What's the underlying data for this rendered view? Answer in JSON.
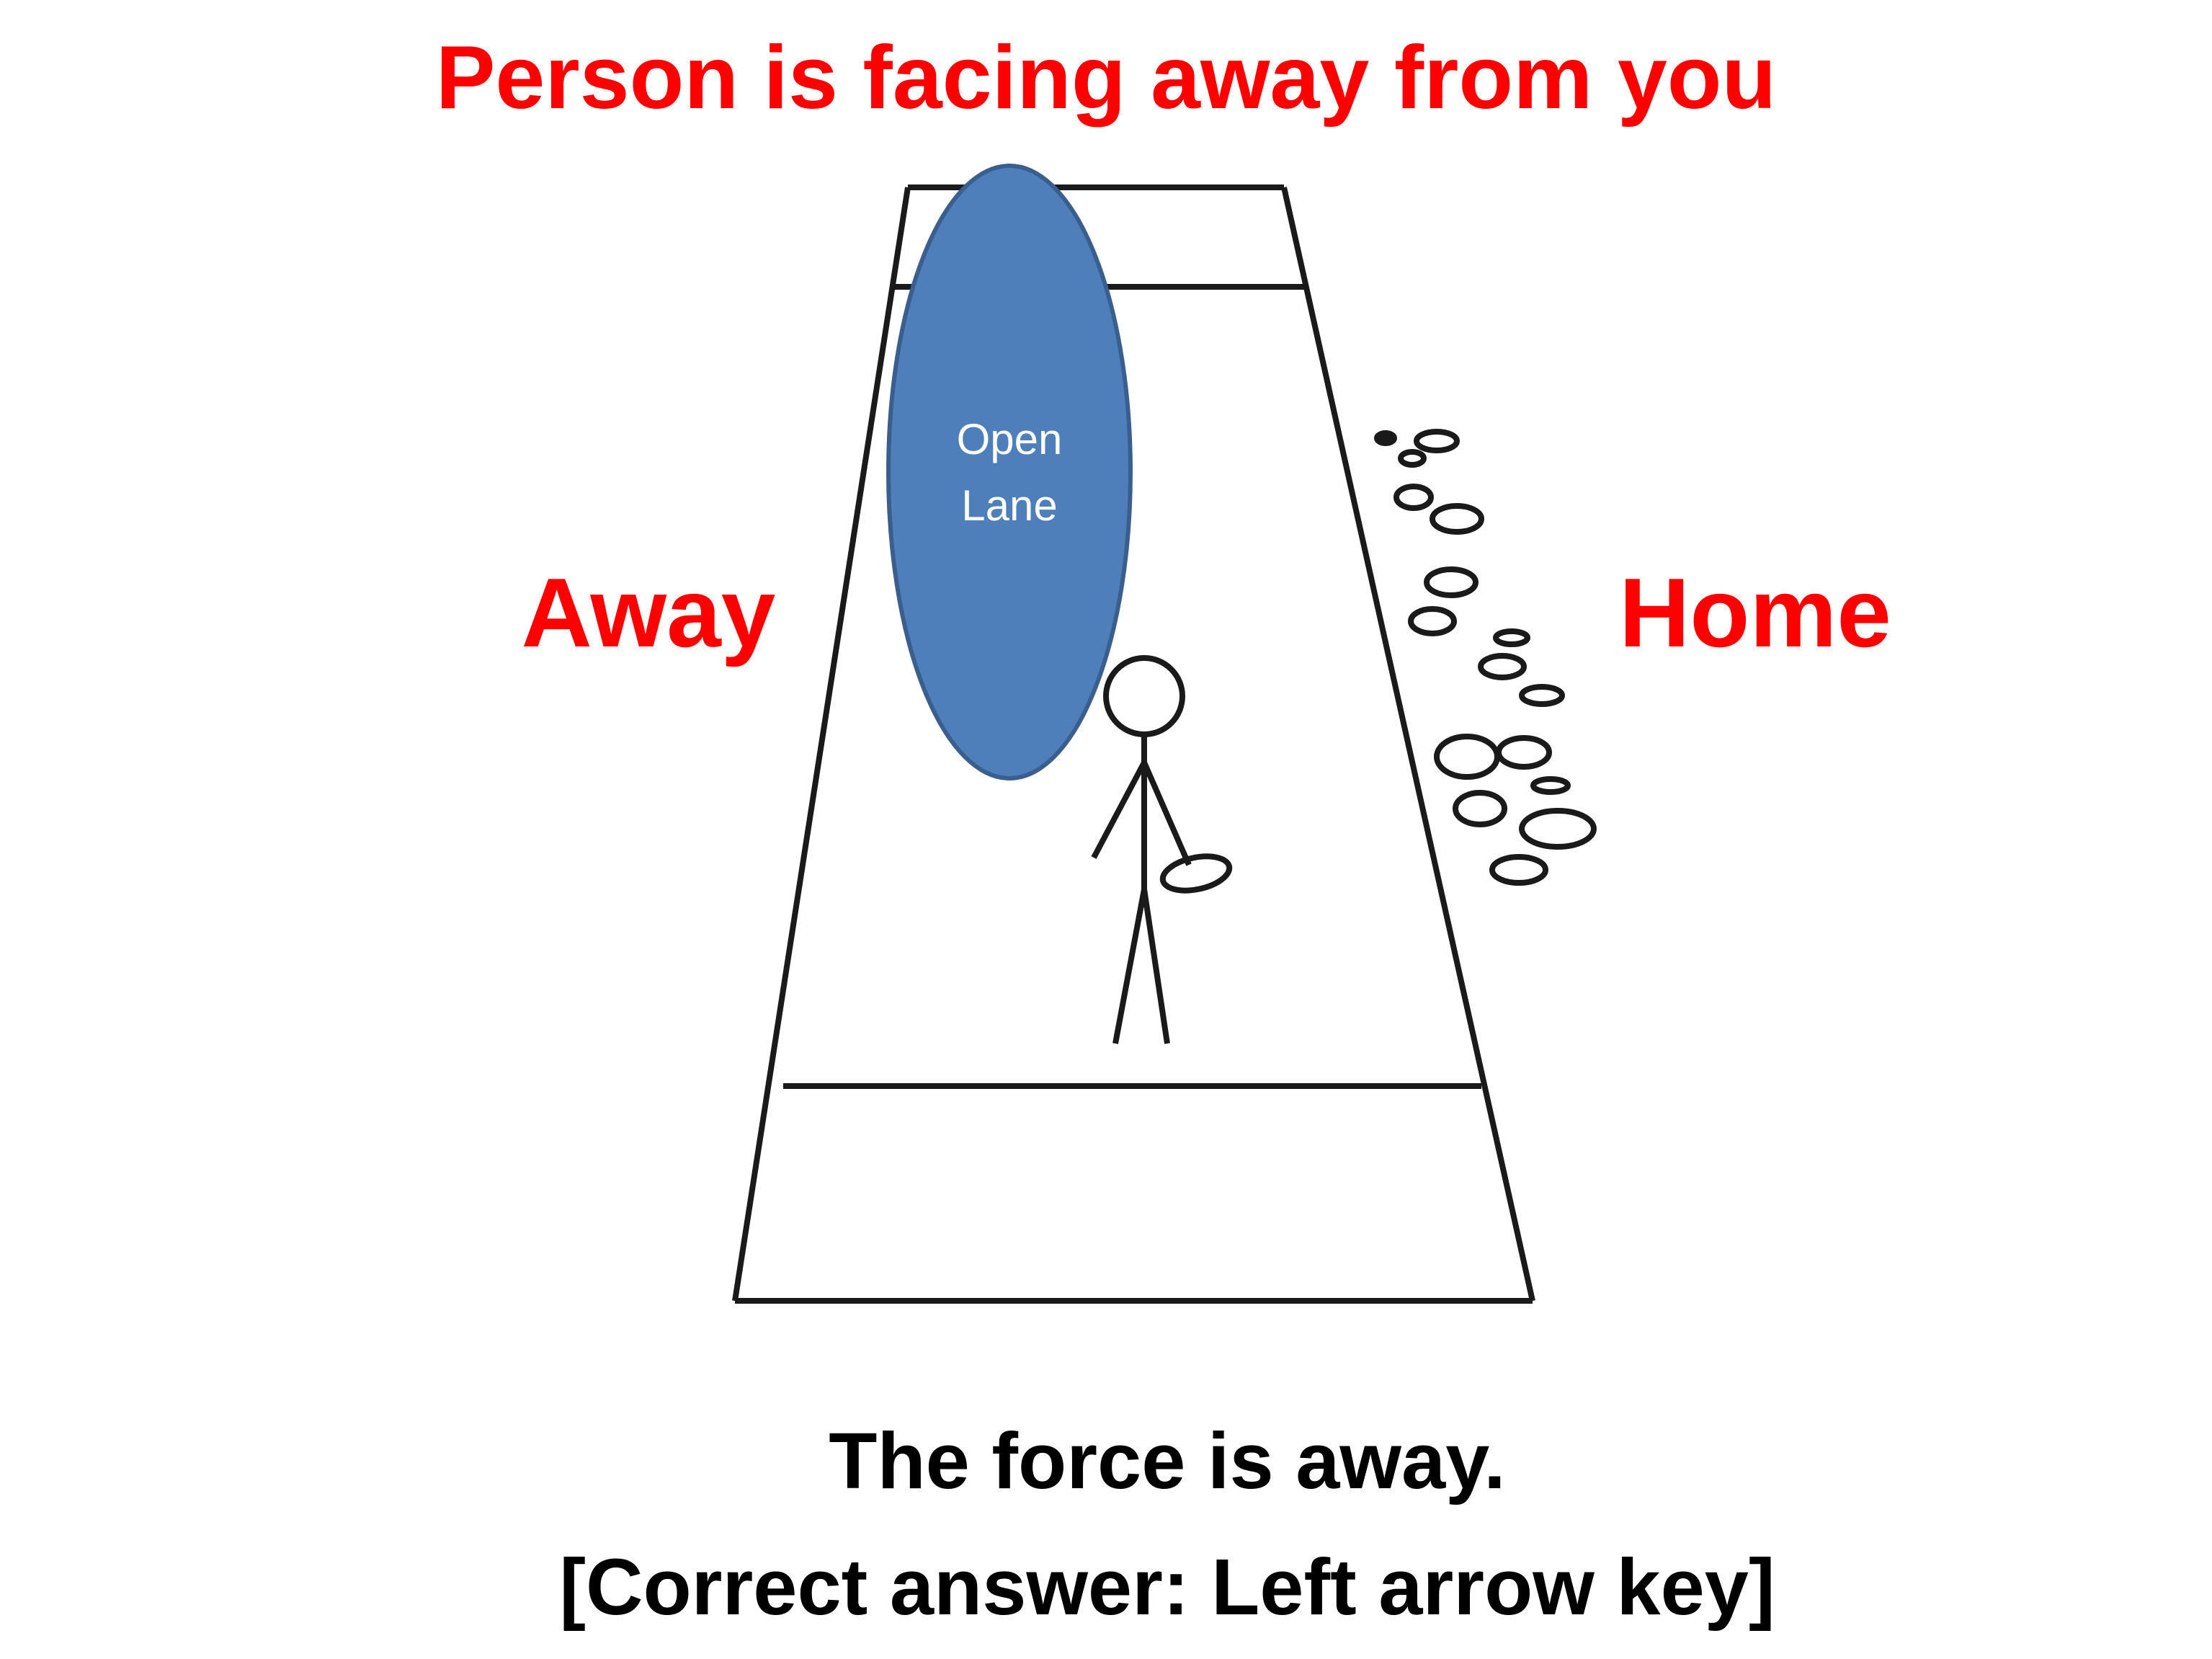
{
  "title": "Person is facing away from you",
  "left_label": "Away",
  "right_label": "Home",
  "open_lane": {
    "line1": "Open",
    "line2": "Lane"
  },
  "caption": {
    "line1": "The force is away.",
    "line2": "[Correct answer: Left arrow key]"
  },
  "colors": {
    "title": "#ff0000",
    "direction_labels": "#ff0000",
    "open_lane_fill": "#4f7fba",
    "open_lane_stroke": "#3a5f8f",
    "open_lane_text": "#ffffff",
    "lines": "#1a1a1a",
    "caption": "#000000"
  }
}
